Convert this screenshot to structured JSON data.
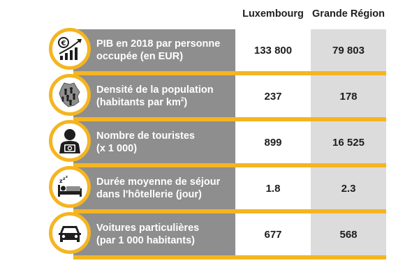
{
  "header": {
    "col1": "Luxembourg",
    "col2": "Grande Région"
  },
  "rows": [
    {
      "icon": "euro-chart-icon",
      "line1": "PIB en 2018 par personne",
      "line2": "occupée (en EUR)",
      "lux": "133 800",
      "gr": "79 803"
    },
    {
      "icon": "population-map-icon",
      "line1": "Densité de la population",
      "line2": "(habitants par km",
      "line2_sup": "2",
      "line2_end": ")",
      "lux": "237",
      "gr": "178"
    },
    {
      "icon": "tourist-camera-icon",
      "line1": "Nombre de touristes",
      "line2": "(x 1 000)",
      "lux": "899",
      "gr": "16 525"
    },
    {
      "icon": "sleeping-bed-icon",
      "line1": "Durée moyenne de séjour",
      "line2": "dans l'hôtellerie (jour)",
      "lux": "1.8",
      "gr": "2.3"
    },
    {
      "icon": "car-icon",
      "line1": "Voitures particulières",
      "line2": "(par 1 000 habitants)",
      "lux": "677",
      "gr": "568"
    }
  ],
  "colors": {
    "accent": "#f4b521",
    "label_bg": "#8e8e8e",
    "grande_region_bg": "#dcdcdc"
  }
}
